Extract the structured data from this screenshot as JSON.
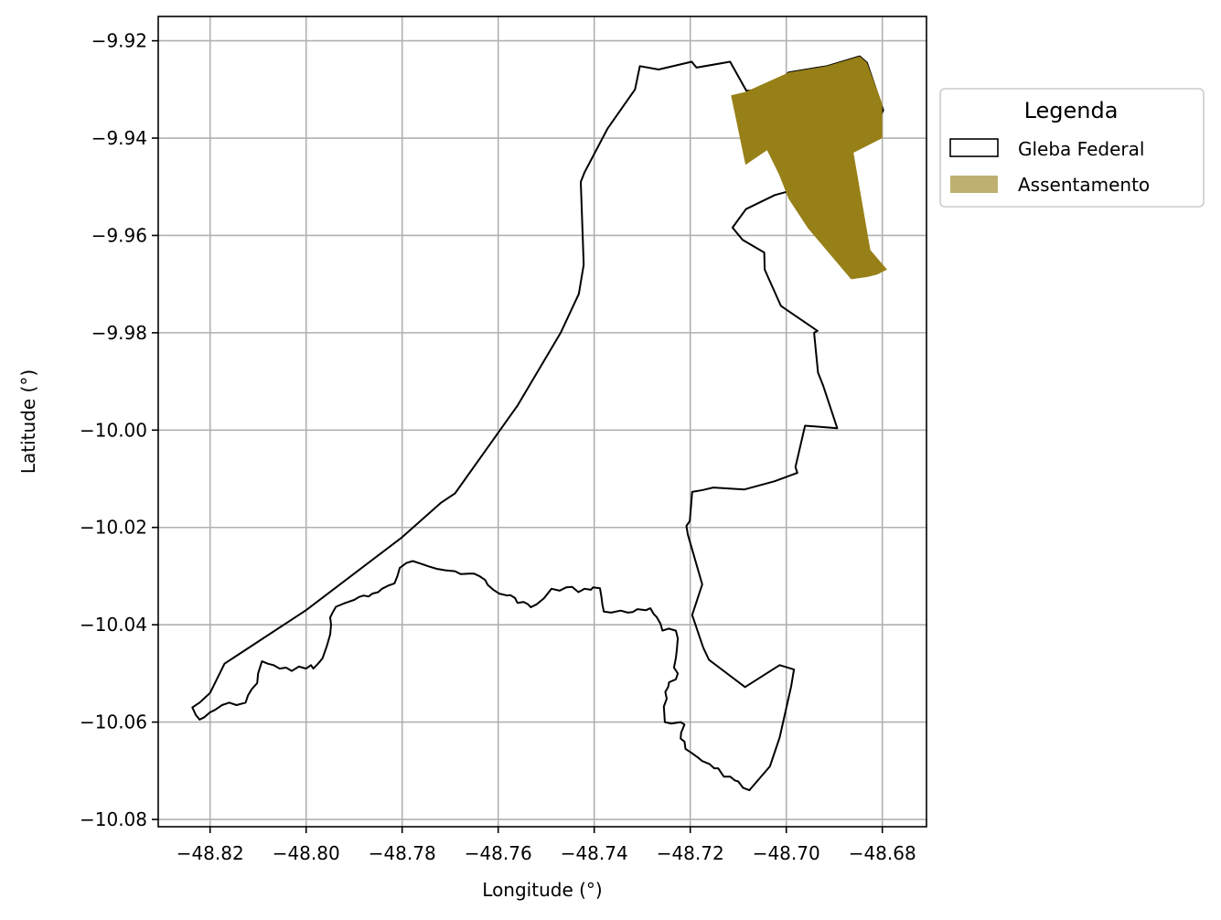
{
  "chart_data": {
    "type": "map",
    "xlabel": "Longitude (°)",
    "ylabel": "Latitude (°)",
    "xlim": [
      -48.8308,
      -48.6708
    ],
    "ylim": [
      -10.0815,
      -9.915
    ],
    "grid": true,
    "x_ticks": [
      -48.82,
      -48.8,
      -48.78,
      -48.76,
      -48.74,
      -48.72,
      -48.7,
      -48.68
    ],
    "x_tick_labels": [
      "−48.82",
      "−48.80",
      "−48.78",
      "−48.76",
      "−48.74",
      "−48.72",
      "−48.70",
      "−48.68"
    ],
    "y_ticks": [
      -9.92,
      -9.94,
      -9.96,
      -9.98,
      -10.0,
      -10.02,
      -10.04,
      -10.06,
      -10.08
    ],
    "y_tick_labels": [
      "−9.92",
      "−9.94",
      "−9.96",
      "−9.98",
      "−10.00",
      "−10.02",
      "−10.04",
      "−10.06",
      "−10.08"
    ],
    "legend": {
      "title": "Legenda",
      "placement": "outside-right-top",
      "entries": [
        {
          "label": "Gleba Federal",
          "style": "outline",
          "edge_color": "#000000",
          "fill": "none"
        },
        {
          "label": "Assentamento",
          "style": "fill",
          "fill": "#BFB072"
        }
      ]
    },
    "series": [
      {
        "name": "Gleba Federal",
        "kind": "polygon-outline",
        "color": "#000000",
        "points": [
          [
            -48.7305,
            -9.9252
          ],
          [
            -48.7266,
            -9.9259
          ],
          [
            -48.7197,
            -9.9243
          ],
          [
            -48.7187,
            -9.9255
          ],
          [
            -48.7117,
            -9.9243
          ],
          [
            -48.7083,
            -9.9303
          ],
          [
            -48.7033,
            -9.9298
          ],
          [
            -48.6995,
            -9.9265
          ],
          [
            -48.6915,
            -9.9252
          ],
          [
            -48.6847,
            -9.9232
          ],
          [
            -48.6832,
            -9.9245
          ],
          [
            -48.6798,
            -9.9343
          ],
          [
            -48.6834,
            -9.941
          ],
          [
            -48.6862,
            -9.9428
          ],
          [
            -48.6905,
            -9.9482
          ],
          [
            -48.6968,
            -9.9502
          ],
          [
            -48.7024,
            -9.9517
          ],
          [
            -48.7084,
            -9.9546
          ],
          [
            -48.7112,
            -9.9584
          ],
          [
            -48.7091,
            -9.9609
          ],
          [
            -48.7046,
            -9.9635
          ],
          [
            -48.7045,
            -9.967
          ],
          [
            -48.7036,
            -9.969
          ],
          [
            -48.7011,
            -9.9745
          ],
          [
            -48.6935,
            -9.9796
          ],
          [
            -48.6942,
            -9.98
          ],
          [
            -48.6934,
            -9.9882
          ],
          [
            -48.6923,
            -9.9909
          ],
          [
            -48.6894,
            -9.9996
          ],
          [
            -48.6961,
            -9.9991
          ],
          [
            -48.6981,
            -10.0076
          ],
          [
            -48.6977,
            -10.0088
          ],
          [
            -48.7024,
            -10.0105
          ],
          [
            -48.7087,
            -10.0122
          ],
          [
            -48.7152,
            -10.0118
          ],
          [
            -48.7174,
            -10.0123
          ],
          [
            -48.7196,
            -10.0127
          ],
          [
            -48.7201,
            -10.0187
          ],
          [
            -48.7208,
            -10.0197
          ],
          [
            -48.7205,
            -10.0215
          ],
          [
            -48.7175,
            -10.0317
          ],
          [
            -48.7196,
            -10.038
          ],
          [
            -48.7173,
            -10.0447
          ],
          [
            -48.7161,
            -10.0472
          ],
          [
            -48.7086,
            -10.0528
          ],
          [
            -48.7014,
            -10.0483
          ],
          [
            -48.6984,
            -10.0492
          ],
          [
            -48.699,
            -10.0527
          ],
          [
            -48.7014,
            -10.0632
          ],
          [
            -48.7034,
            -10.0691
          ],
          [
            -48.7077,
            -10.074
          ],
          [
            -48.709,
            -10.0735
          ],
          [
            -48.71,
            -10.0722
          ],
          [
            -48.7107,
            -10.072
          ],
          [
            -48.7117,
            -10.0712
          ],
          [
            -48.713,
            -10.0712
          ],
          [
            -48.7142,
            -10.0695
          ],
          [
            -48.715,
            -10.0695
          ],
          [
            -48.716,
            -10.0686
          ],
          [
            -48.7175,
            -10.068
          ],
          [
            -48.7185,
            -10.0672
          ],
          [
            -48.7198,
            -10.0663
          ],
          [
            -48.721,
            -10.0655
          ],
          [
            -48.7212,
            -10.064
          ],
          [
            -48.722,
            -10.0634
          ],
          [
            -48.7219,
            -10.0622
          ],
          [
            -48.7212,
            -10.0605
          ],
          [
            -48.722,
            -10.06
          ],
          [
            -48.724,
            -10.0603
          ],
          [
            -48.7253,
            -10.06
          ],
          [
            -48.7254,
            -10.0584
          ],
          [
            -48.7255,
            -10.0568
          ],
          [
            -48.7249,
            -10.0552
          ],
          [
            -48.7252,
            -10.0538
          ],
          [
            -48.7246,
            -10.0528
          ],
          [
            -48.7244,
            -10.0518
          ],
          [
            -48.723,
            -10.0512
          ],
          [
            -48.7226,
            -10.05
          ],
          [
            -48.7234,
            -10.0488
          ],
          [
            -48.723,
            -10.0468
          ],
          [
            -48.7228,
            -10.0452
          ],
          [
            -48.7226,
            -10.0428
          ],
          [
            -48.723,
            -10.0412
          ],
          [
            -48.7245,
            -10.0408
          ],
          [
            -48.7258,
            -10.0412
          ],
          [
            -48.7262,
            -10.0398
          ],
          [
            -48.727,
            -10.0384
          ],
          [
            -48.7276,
            -10.0378
          ],
          [
            -48.7283,
            -10.0366
          ],
          [
            -48.7292,
            -10.037
          ],
          [
            -48.731,
            -10.0368
          ],
          [
            -48.732,
            -10.0374
          ],
          [
            -48.733,
            -10.0375
          ],
          [
            -48.7345,
            -10.0371
          ],
          [
            -48.7365,
            -10.0375
          ],
          [
            -48.738,
            -10.0373
          ],
          [
            -48.7383,
            -10.0358
          ],
          [
            -48.7385,
            -10.0343
          ],
          [
            -48.7388,
            -10.0325
          ],
          [
            -48.7402,
            -10.0323
          ],
          [
            -48.7407,
            -10.0328
          ],
          [
            -48.742,
            -10.0326
          ],
          [
            -48.7433,
            -10.0333
          ],
          [
            -48.7446,
            -10.0322
          ],
          [
            -48.7458,
            -10.0323
          ],
          [
            -48.7472,
            -10.033
          ],
          [
            -48.7489,
            -10.0326
          ],
          [
            -48.7497,
            -10.0336
          ],
          [
            -48.7505,
            -10.0346
          ],
          [
            -48.752,
            -10.0358
          ],
          [
            -48.7532,
            -10.0364
          ],
          [
            -48.7538,
            -10.0358
          ],
          [
            -48.7547,
            -10.0353
          ],
          [
            -48.756,
            -10.0355
          ],
          [
            -48.7565,
            -10.0345
          ],
          [
            -48.7575,
            -10.0339
          ],
          [
            -48.7581,
            -10.034
          ],
          [
            -48.7598,
            -10.0336
          ],
          [
            -48.761,
            -10.0328
          ],
          [
            -48.7622,
            -10.0318
          ],
          [
            -48.7627,
            -10.0308
          ],
          [
            -48.7639,
            -10.03
          ],
          [
            -48.765,
            -10.0295
          ],
          [
            -48.7661,
            -10.0295
          ],
          [
            -48.7678,
            -10.0296
          ],
          [
            -48.769,
            -10.029
          ],
          [
            -48.771,
            -10.0288
          ],
          [
            -48.7728,
            -10.0285
          ],
          [
            -48.7745,
            -10.028
          ],
          [
            -48.776,
            -10.0275
          ],
          [
            -48.7778,
            -10.0269
          ],
          [
            -48.7791,
            -10.0273
          ],
          [
            -48.7805,
            -10.0283
          ],
          [
            -48.781,
            -10.03
          ],
          [
            -48.7816,
            -10.0315
          ],
          [
            -48.783,
            -10.032
          ],
          [
            -48.7842,
            -10.0326
          ],
          [
            -48.785,
            -10.0333
          ],
          [
            -48.7862,
            -10.0336
          ],
          [
            -48.787,
            -10.0342
          ],
          [
            -48.788,
            -10.034
          ],
          [
            -48.789,
            -10.0343
          ],
          [
            -48.79,
            -10.0349
          ],
          [
            -48.7918,
            -10.0355
          ],
          [
            -48.7938,
            -10.0363
          ],
          [
            -48.7945,
            -10.0375
          ],
          [
            -48.795,
            -10.0385
          ],
          [
            -48.7948,
            -10.04
          ],
          [
            -48.795,
            -10.042
          ],
          [
            -48.7957,
            -10.0444
          ],
          [
            -48.7966,
            -10.0469
          ],
          [
            -48.7975,
            -10.048
          ],
          [
            -48.7985,
            -10.049
          ],
          [
            -48.799,
            -10.0483
          ],
          [
            -48.8,
            -10.049
          ],
          [
            -48.8015,
            -10.0486
          ],
          [
            -48.803,
            -10.0495
          ],
          [
            -48.8042,
            -10.0488
          ],
          [
            -48.8055,
            -10.049
          ],
          [
            -48.8068,
            -10.0483
          ],
          [
            -48.808,
            -10.048
          ],
          [
            -48.8092,
            -10.0475
          ],
          [
            -48.81,
            -10.05
          ],
          [
            -48.8102,
            -10.052
          ],
          [
            -48.8113,
            -10.0532
          ],
          [
            -48.8121,
            -10.0545
          ],
          [
            -48.8126,
            -10.056
          ],
          [
            -48.8145,
            -10.0565
          ],
          [
            -48.816,
            -10.056
          ],
          [
            -48.8175,
            -10.0565
          ],
          [
            -48.819,
            -10.0575
          ],
          [
            -48.82,
            -10.058
          ],
          [
            -48.8212,
            -10.059
          ],
          [
            -48.8222,
            -10.0595
          ],
          [
            -48.823,
            -10.0585
          ],
          [
            -48.8237,
            -10.057
          ],
          [
            -48.8222,
            -10.056
          ],
          [
            -48.82,
            -10.054
          ],
          [
            -48.817,
            -10.048
          ],
          [
            -48.8,
            -10.037
          ],
          [
            -48.78,
            -10.022
          ],
          [
            -48.772,
            -10.015
          ],
          [
            -48.769,
            -10.013
          ],
          [
            -48.756,
            -9.995
          ],
          [
            -48.747,
            -9.98
          ],
          [
            -48.7432,
            -9.972
          ],
          [
            -48.7422,
            -9.966
          ],
          [
            -48.7428,
            -9.949
          ],
          [
            -48.742,
            -9.947
          ],
          [
            -48.7372,
            -9.938
          ],
          [
            -48.7315,
            -9.93
          ],
          [
            -48.7305,
            -9.9252
          ]
        ]
      },
      {
        "name": "Assentamento",
        "kind": "polygon-fill",
        "color": "#978017",
        "points": [
          [
            -48.7115,
            -9.9312
          ],
          [
            -48.7085,
            -9.9305
          ],
          [
            -48.6995,
            -9.9265
          ],
          [
            -48.6915,
            -9.9252
          ],
          [
            -48.6847,
            -9.9232
          ],
          [
            -48.6832,
            -9.9245
          ],
          [
            -48.68,
            -9.933
          ],
          [
            -48.68,
            -9.94
          ],
          [
            -48.686,
            -9.943
          ],
          [
            -48.6825,
            -9.963
          ],
          [
            -48.679,
            -9.967
          ],
          [
            -48.681,
            -9.968
          ],
          [
            -48.683,
            -9.9685
          ],
          [
            -48.6865,
            -9.969
          ],
          [
            -48.6955,
            -9.9585
          ],
          [
            -48.6995,
            -9.9525
          ],
          [
            -48.7015,
            -9.9475
          ],
          [
            -48.704,
            -9.9425
          ],
          [
            -48.7085,
            -9.9455
          ]
        ]
      }
    ]
  }
}
